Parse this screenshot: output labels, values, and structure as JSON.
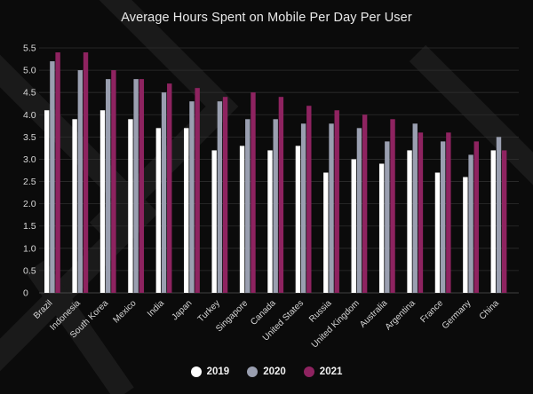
{
  "chart_data": {
    "type": "bar",
    "title": "Average Hours Spent on Mobile Per Day Per User",
    "xlabel": "",
    "ylabel": "",
    "ylim": [
      0,
      5.5
    ],
    "yticks": [
      "0",
      "0.5",
      "1.0",
      "1.5",
      "2.0",
      "2.5",
      "3.0",
      "3.5",
      "4.0",
      "4.5",
      "5.0",
      "5.5"
    ],
    "grid": true,
    "legend_position": "bottom-center",
    "categories": [
      "Brazil",
      "Indonesia",
      "South Korea",
      "Mexico",
      "India",
      "Japan",
      "Turkey",
      "Singapore",
      "Canada",
      "United States",
      "Russia",
      "United Kingdom",
      "Australia",
      "Argentina",
      "France",
      "Germany",
      "China"
    ],
    "series": [
      {
        "name": "2019",
        "color": "#ffffff",
        "values": [
          4.1,
          3.9,
          4.1,
          3.9,
          3.7,
          3.7,
          3.2,
          3.3,
          3.2,
          3.3,
          2.7,
          3.0,
          2.9,
          3.2,
          2.7,
          2.6,
          3.2
        ]
      },
      {
        "name": "2020",
        "color": "#9a9fb0",
        "values": [
          5.2,
          5.0,
          4.8,
          4.8,
          4.5,
          4.3,
          4.3,
          3.9,
          3.9,
          3.8,
          3.8,
          3.7,
          3.4,
          3.8,
          3.4,
          3.1,
          3.5
        ]
      },
      {
        "name": "2021",
        "color": "#8e2360",
        "values": [
          5.4,
          5.4,
          5.0,
          4.8,
          4.7,
          4.6,
          4.4,
          4.5,
          4.4,
          4.2,
          4.1,
          4.0,
          3.9,
          3.6,
          3.6,
          3.4,
          3.2
        ]
      }
    ]
  }
}
